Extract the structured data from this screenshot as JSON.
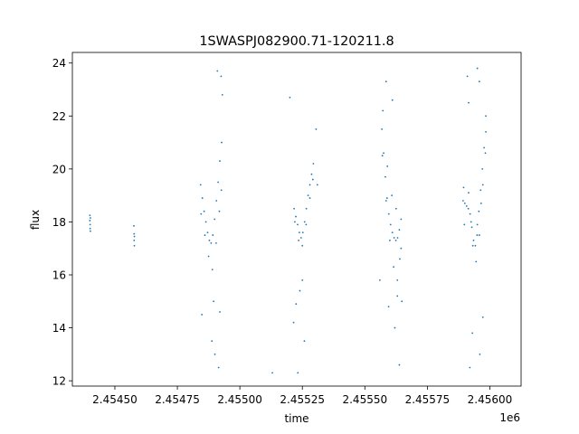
{
  "chart_data": {
    "type": "scatter",
    "title": "1SWASPJ082900.71-120211.8",
    "xlabel": "time",
    "ylabel": "flux",
    "x_offset_label": "1e6",
    "xlim": [
      2454330,
      2456125
    ],
    "ylim": [
      11.8,
      24.4
    ],
    "x_ticks": [
      {
        "value": 2454500,
        "label": "2.45450"
      },
      {
        "value": 2454750,
        "label": "2.45475"
      },
      {
        "value": 2455000,
        "label": "2.45500"
      },
      {
        "value": 2455250,
        "label": "2.45525"
      },
      {
        "value": 2455500,
        "label": "2.45550"
      },
      {
        "value": 2455750,
        "label": "2.45575"
      },
      {
        "value": 2456000,
        "label": "2.45600"
      }
    ],
    "y_ticks": [
      {
        "value": 12,
        "label": "12"
      },
      {
        "value": 14,
        "label": "14"
      },
      {
        "value": 16,
        "label": "16"
      },
      {
        "value": 18,
        "label": "18"
      },
      {
        "value": 20,
        "label": "20"
      },
      {
        "value": 22,
        "label": "22"
      },
      {
        "value": 24,
        "label": "24"
      }
    ],
    "grid": false,
    "legend": "none",
    "marker_color": "#1f77b4",
    "series": [
      {
        "points": [
          [
            2454400,
            18.25
          ],
          [
            2454400,
            18.05
          ],
          [
            2454401,
            17.9
          ],
          [
            2454401,
            17.75
          ],
          [
            2454402,
            18.15
          ],
          [
            2454402,
            17.65
          ],
          [
            2454576,
            17.85
          ],
          [
            2454577,
            17.55
          ],
          [
            2454577,
            17.3
          ],
          [
            2454578,
            17.1
          ],
          [
            2454578,
            17.45
          ],
          [
            2454843,
            19.4
          ],
          [
            2454850,
            18.9
          ],
          [
            2454857,
            18.4
          ],
          [
            2454864,
            18.0
          ],
          [
            2454871,
            17.6
          ],
          [
            2454878,
            17.3
          ],
          [
            2454885,
            17.2
          ],
          [
            2454892,
            17.5
          ],
          [
            2454899,
            18.1
          ],
          [
            2454906,
            18.8
          ],
          [
            2454913,
            19.5
          ],
          [
            2454920,
            20.3
          ],
          [
            2454927,
            21.0
          ],
          [
            2454845,
            18.3
          ],
          [
            2454860,
            17.5
          ],
          [
            2454875,
            16.7
          ],
          [
            2454890,
            16.2
          ],
          [
            2454905,
            17.2
          ],
          [
            2454918,
            18.4
          ],
          [
            2454926,
            19.2
          ],
          [
            2454848,
            14.5
          ],
          [
            2454888,
            13.5
          ],
          [
            2454900,
            13.0
          ],
          [
            2454915,
            12.5
          ],
          [
            2454920,
            14.6
          ],
          [
            2454910,
            23.7
          ],
          [
            2454925,
            23.5
          ],
          [
            2454930,
            22.8
          ],
          [
            2454895,
            15.0
          ],
          [
            2455217,
            18.5
          ],
          [
            2455224,
            18.2
          ],
          [
            2455231,
            17.9
          ],
          [
            2455238,
            17.6
          ],
          [
            2455245,
            17.4
          ],
          [
            2455252,
            17.6
          ],
          [
            2455259,
            18.0
          ],
          [
            2455266,
            18.5
          ],
          [
            2455273,
            19.0
          ],
          [
            2455280,
            19.4
          ],
          [
            2455287,
            19.8
          ],
          [
            2455294,
            20.2
          ],
          [
            2455220,
            18.0
          ],
          [
            2455235,
            17.3
          ],
          [
            2455250,
            17.1
          ],
          [
            2455265,
            17.9
          ],
          [
            2455280,
            18.9
          ],
          [
            2455292,
            19.6
          ],
          [
            2455200,
            22.7
          ],
          [
            2455225,
            14.9
          ],
          [
            2455240,
            15.4
          ],
          [
            2455250,
            15.8
          ],
          [
            2455258,
            13.5
          ],
          [
            2455305,
            21.5
          ],
          [
            2455310,
            19.4
          ],
          [
            2455130,
            12.3
          ],
          [
            2455232,
            12.3
          ],
          [
            2455215,
            14.2
          ],
          [
            2455568,
            21.5
          ],
          [
            2455575,
            20.6
          ],
          [
            2455582,
            19.7
          ],
          [
            2455589,
            18.9
          ],
          [
            2455596,
            18.3
          ],
          [
            2455603,
            17.9
          ],
          [
            2455610,
            17.6
          ],
          [
            2455617,
            17.4
          ],
          [
            2455624,
            17.3
          ],
          [
            2455631,
            17.4
          ],
          [
            2455638,
            17.7
          ],
          [
            2455645,
            18.1
          ],
          [
            2455570,
            20.5
          ],
          [
            2455585,
            18.8
          ],
          [
            2455600,
            17.3
          ],
          [
            2455615,
            16.3
          ],
          [
            2455630,
            15.8
          ],
          [
            2455640,
            16.6
          ],
          [
            2455572,
            22.2
          ],
          [
            2455590,
            20.1
          ],
          [
            2455608,
            19.0
          ],
          [
            2455625,
            18.5
          ],
          [
            2455645,
            17.0
          ],
          [
            2455560,
            15.8
          ],
          [
            2455585,
            23.3
          ],
          [
            2455610,
            22.6
          ],
          [
            2455620,
            14.0
          ],
          [
            2455630,
            15.2
          ],
          [
            2455638,
            12.6
          ],
          [
            2455648,
            15.0
          ],
          [
            2455595,
            14.8
          ],
          [
            2455893,
            18.8
          ],
          [
            2455900,
            18.7
          ],
          [
            2455907,
            18.6
          ],
          [
            2455914,
            18.5
          ],
          [
            2455921,
            18.3
          ],
          [
            2455928,
            17.8
          ],
          [
            2455935,
            17.3
          ],
          [
            2455942,
            17.1
          ],
          [
            2455949,
            17.5
          ],
          [
            2455956,
            18.4
          ],
          [
            2455963,
            19.2
          ],
          [
            2455970,
            20.0
          ],
          [
            2455977,
            20.8
          ],
          [
            2455984,
            21.4
          ],
          [
            2455895,
            19.3
          ],
          [
            2455915,
            19.1
          ],
          [
            2455932,
            17.1
          ],
          [
            2455945,
            16.5
          ],
          [
            2455958,
            17.5
          ],
          [
            2455972,
            19.4
          ],
          [
            2455982,
            20.6
          ],
          [
            2455898,
            17.9
          ],
          [
            2455925,
            18.0
          ],
          [
            2455950,
            17.9
          ],
          [
            2455965,
            18.7
          ],
          [
            2455910,
            23.5
          ],
          [
            2455915,
            22.5
          ],
          [
            2455920,
            12.5
          ],
          [
            2455930,
            13.8
          ],
          [
            2455950,
            23.8
          ],
          [
            2455958,
            23.3
          ],
          [
            2455960,
            13.0
          ],
          [
            2455972,
            14.4
          ],
          [
            2455984,
            22.0
          ]
        ]
      }
    ]
  }
}
